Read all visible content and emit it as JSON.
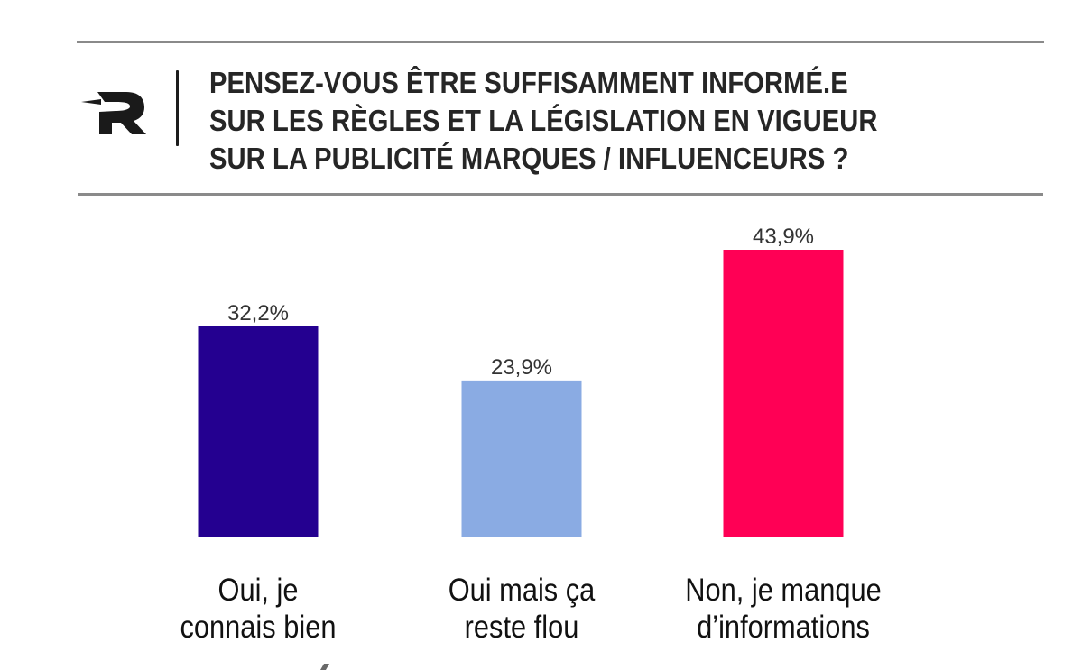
{
  "header": {
    "logo": "R-logo-icon",
    "title_lines": [
      "PENSEZ-VOUS ÊTRE SUFFISAMMENT INFORMÉ.E",
      "SUR LES RÈGLES ET LA LÉGISLATION EN VIGUEUR",
      "SUR LA PUBLICITÉ MARQUES / INFLUENCEURS ?"
    ]
  },
  "chart_data": {
    "type": "bar",
    "title": "PENSEZ-VOUS ÊTRE SUFFISAMMENT INFORMÉ.E SUR LES RÈGLES ET LA LÉGISLATION EN VIGUEUR SUR LA PUBLICITÉ MARQUES / INFLUENCEURS ?",
    "categories": [
      "Oui, je connais bien",
      "Oui mais ça reste flou",
      "Non, je manque d'informations"
    ],
    "category_lines": [
      [
        "Oui, je",
        "connais bien"
      ],
      [
        "Oui mais ça",
        "reste flou"
      ],
      [
        "Non, je manque",
        "d’informations"
      ]
    ],
    "values": [
      32.2,
      23.9,
      43.9
    ],
    "value_labels": [
      "32,2%",
      "23,9%",
      "43,9%"
    ],
    "colors": [
      "#240090",
      "#8AABE3",
      "#FF0055"
    ],
    "unit": "%",
    "xlabel": "",
    "ylabel": "",
    "ylim": [
      0,
      43.9
    ],
    "grid": false,
    "legend": "none"
  }
}
